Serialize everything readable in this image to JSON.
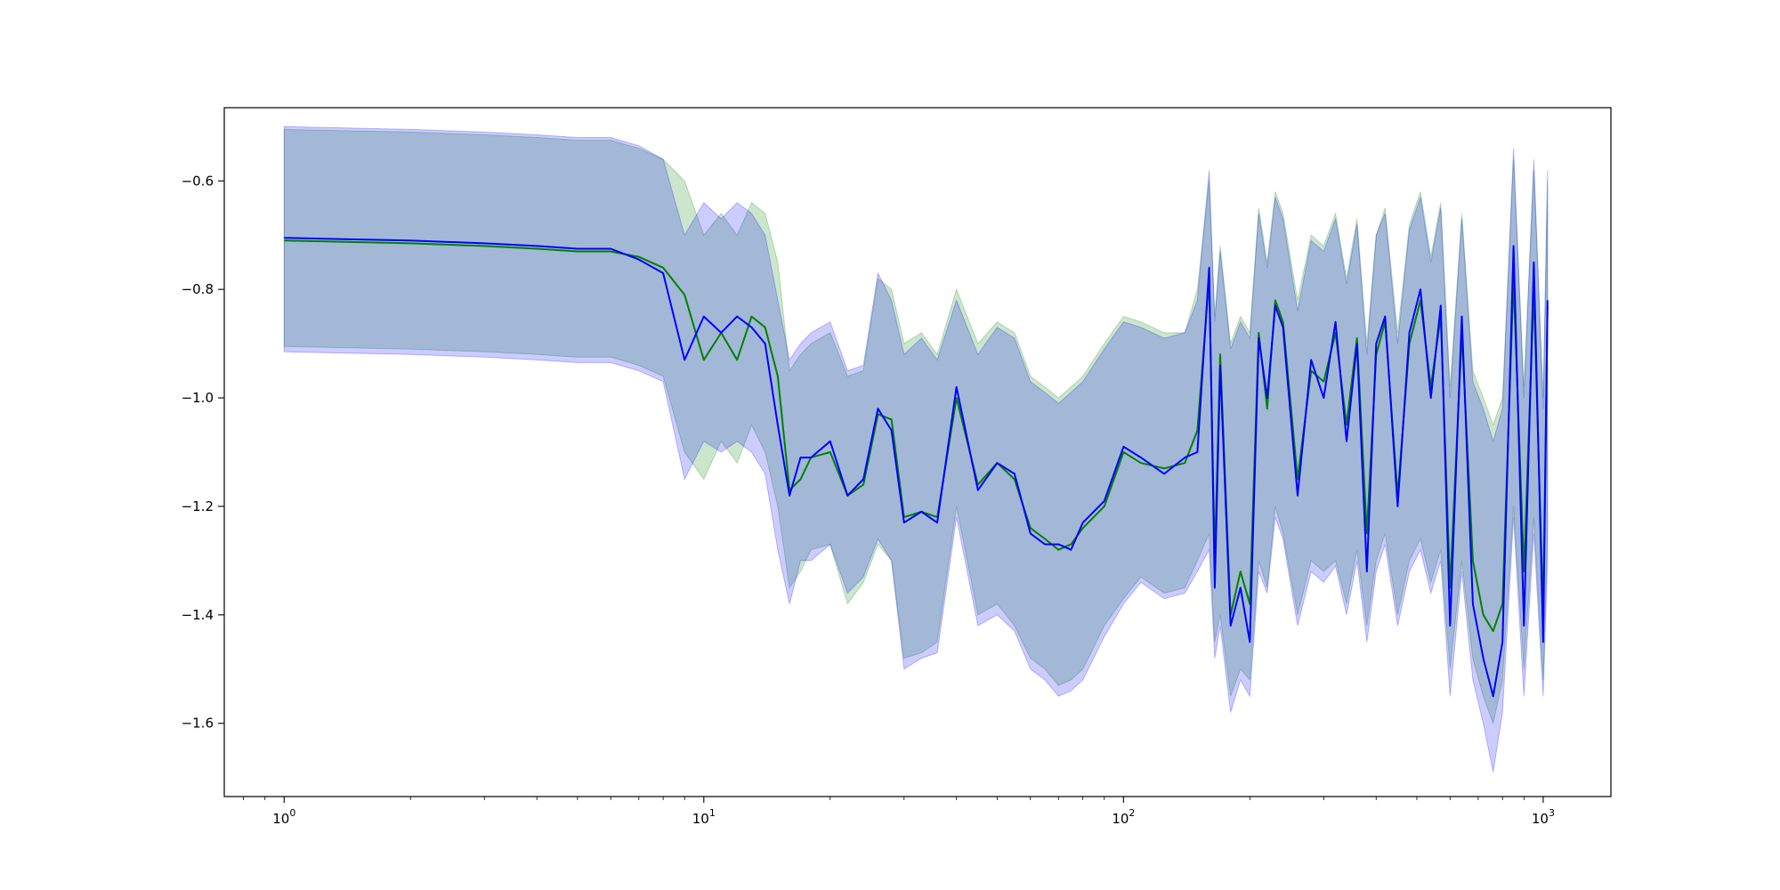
{
  "chart_data": {
    "type": "line",
    "title": "",
    "xlabel": "",
    "ylabel": "",
    "x_scale": "log",
    "xlim": [
      0.72,
      1450
    ],
    "ylim": [
      -1.735,
      -0.465
    ],
    "grid": false,
    "legend": "none",
    "x_tick_labels": [
      {
        "value": 1,
        "base": "10",
        "exp": "0"
      },
      {
        "value": 10,
        "base": "10",
        "exp": "1"
      },
      {
        "value": 100,
        "base": "10",
        "exp": "2"
      },
      {
        "value": 1000,
        "base": "10",
        "exp": "3"
      }
    ],
    "y_ticks": [
      -0.6,
      -0.8,
      -1.0,
      -1.2,
      -1.4,
      -1.6
    ],
    "y_tick_labels": [
      "−0.6",
      "−0.8",
      "−1.0",
      "−1.2",
      "−1.4",
      "−1.6"
    ],
    "series": [
      {
        "color": "#008000",
        "band_color": "#008000",
        "x": [
          1,
          2,
          3,
          4,
          5,
          6,
          7,
          8,
          9,
          10,
          11,
          12,
          13,
          14,
          15,
          16,
          17,
          18,
          20,
          22,
          24,
          26,
          28,
          30,
          33,
          36,
          40,
          45,
          50,
          55,
          60,
          65,
          70,
          75,
          80,
          90,
          100,
          110,
          125,
          140,
          150,
          160,
          165,
          170,
          180,
          190,
          200,
          210,
          220,
          230,
          240,
          260,
          280,
          300,
          320,
          340,
          360,
          380,
          400,
          420,
          450,
          480,
          510,
          540,
          570,
          600,
          640,
          680,
          720,
          760,
          800,
          850,
          900,
          950,
          1000,
          1024
        ],
        "values": [
          -0.71,
          -0.715,
          -0.72,
          -0.725,
          -0.73,
          -0.73,
          -0.74,
          -0.76,
          -0.81,
          -0.93,
          -0.88,
          -0.93,
          -0.85,
          -0.87,
          -0.96,
          -1.17,
          -1.15,
          -1.11,
          -1.1,
          -1.18,
          -1.16,
          -1.03,
          -1.04,
          -1.22,
          -1.21,
          -1.22,
          -1.0,
          -1.16,
          -1.12,
          -1.15,
          -1.24,
          -1.26,
          -1.28,
          -1.27,
          -1.24,
          -1.2,
          -1.1,
          -1.12,
          -1.13,
          -1.12,
          -1.06,
          -0.78,
          -1.3,
          -0.92,
          -1.4,
          -1.32,
          -1.38,
          -0.88,
          -1.02,
          -0.82,
          -0.86,
          -1.15,
          -0.95,
          -0.97,
          -0.88,
          -1.05,
          -0.89,
          -1.25,
          -0.92,
          -0.86,
          -1.18,
          -0.9,
          -0.82,
          -0.98,
          -0.85,
          -1.35,
          -0.88,
          -1.3,
          -1.4,
          -1.43,
          -1.38,
          -0.78,
          -1.32,
          -0.8,
          -1.4,
          -0.83
        ],
        "band_lower": [
          -0.905,
          -0.91,
          -0.915,
          -0.92,
          -0.925,
          -0.925,
          -0.94,
          -0.96,
          -1.1,
          -1.15,
          -1.08,
          -1.12,
          -1.05,
          -1.1,
          -1.2,
          -1.35,
          -1.32,
          -1.28,
          -1.27,
          -1.38,
          -1.34,
          -1.27,
          -1.3,
          -1.48,
          -1.47,
          -1.45,
          -1.2,
          -1.4,
          -1.38,
          -1.42,
          -1.48,
          -1.5,
          -1.53,
          -1.52,
          -1.5,
          -1.42,
          -1.37,
          -1.33,
          -1.36,
          -1.35,
          -1.3,
          -1.25,
          -1.45,
          -1.4,
          -1.55,
          -1.5,
          -1.52,
          -1.3,
          -1.35,
          -1.2,
          -1.25,
          -1.4,
          -1.3,
          -1.32,
          -1.3,
          -1.38,
          -1.28,
          -1.42,
          -1.3,
          -1.25,
          -1.4,
          -1.3,
          -1.26,
          -1.34,
          -1.28,
          -1.5,
          -1.3,
          -1.48,
          -1.55,
          -1.6,
          -1.52,
          -1.2,
          -1.5,
          -1.22,
          -1.52,
          -1.25
        ],
        "band_upper": [
          -0.505,
          -0.51,
          -0.515,
          -0.52,
          -0.525,
          -0.525,
          -0.54,
          -0.56,
          -0.6,
          -0.7,
          -0.66,
          -0.7,
          -0.64,
          -0.66,
          -0.75,
          -0.95,
          -0.92,
          -0.9,
          -0.88,
          -0.96,
          -0.95,
          -0.78,
          -0.8,
          -0.9,
          -0.88,
          -0.92,
          -0.8,
          -0.9,
          -0.86,
          -0.88,
          -0.96,
          -0.98,
          -1.0,
          -0.98,
          -0.96,
          -0.9,
          -0.85,
          -0.86,
          -0.88,
          -0.88,
          -0.8,
          -0.6,
          -0.85,
          -0.72,
          -0.9,
          -0.85,
          -0.88,
          -0.65,
          -0.75,
          -0.62,
          -0.66,
          -0.82,
          -0.7,
          -0.72,
          -0.66,
          -0.78,
          -0.67,
          -0.9,
          -0.7,
          -0.65,
          -0.88,
          -0.68,
          -0.62,
          -0.74,
          -0.64,
          -0.98,
          -0.66,
          -0.95,
          -1.0,
          -1.05,
          -1.0,
          -0.56,
          -0.98,
          -0.58,
          -1.0,
          -0.6
        ]
      },
      {
        "color": "#0000ff",
        "band_color": "#0000ff",
        "x": [
          1,
          2,
          3,
          4,
          5,
          6,
          7,
          8,
          9,
          10,
          11,
          12,
          13,
          14,
          15,
          16,
          17,
          18,
          20,
          22,
          24,
          26,
          28,
          30,
          33,
          36,
          40,
          45,
          50,
          55,
          60,
          65,
          70,
          75,
          80,
          90,
          100,
          110,
          125,
          140,
          150,
          160,
          165,
          170,
          180,
          190,
          200,
          210,
          220,
          230,
          240,
          260,
          280,
          300,
          320,
          340,
          360,
          380,
          400,
          420,
          450,
          480,
          510,
          540,
          570,
          600,
          640,
          680,
          720,
          760,
          800,
          850,
          900,
          950,
          1000,
          1024
        ],
        "values": [
          -0.705,
          -0.71,
          -0.715,
          -0.72,
          -0.725,
          -0.725,
          -0.745,
          -0.77,
          -0.93,
          -0.85,
          -0.88,
          -0.85,
          -0.87,
          -0.9,
          -1.05,
          -1.18,
          -1.11,
          -1.11,
          -1.08,
          -1.18,
          -1.15,
          -1.02,
          -1.06,
          -1.23,
          -1.21,
          -1.23,
          -0.98,
          -1.17,
          -1.12,
          -1.14,
          -1.25,
          -1.27,
          -1.27,
          -1.28,
          -1.23,
          -1.19,
          -1.09,
          -1.11,
          -1.14,
          -1.11,
          -1.1,
          -0.76,
          -1.35,
          -0.94,
          -1.42,
          -1.35,
          -1.45,
          -0.89,
          -1.0,
          -0.83,
          -0.87,
          -1.18,
          -0.93,
          -1.0,
          -0.86,
          -1.08,
          -0.9,
          -1.32,
          -0.9,
          -0.85,
          -1.2,
          -0.88,
          -0.8,
          -1.0,
          -0.83,
          -1.42,
          -0.85,
          -1.38,
          -1.48,
          -1.55,
          -1.45,
          -0.72,
          -1.42,
          -0.75,
          -1.45,
          -0.82
        ],
        "band_lower": [
          -0.915,
          -0.92,
          -0.925,
          -0.93,
          -0.935,
          -0.935,
          -0.95,
          -0.97,
          -1.15,
          -1.08,
          -1.1,
          -1.08,
          -1.1,
          -1.14,
          -1.28,
          -1.38,
          -1.3,
          -1.3,
          -1.27,
          -1.36,
          -1.33,
          -1.26,
          -1.3,
          -1.5,
          -1.48,
          -1.47,
          -1.22,
          -1.42,
          -1.4,
          -1.43,
          -1.5,
          -1.52,
          -1.55,
          -1.54,
          -1.52,
          -1.44,
          -1.38,
          -1.34,
          -1.37,
          -1.36,
          -1.32,
          -1.28,
          -1.48,
          -1.42,
          -1.58,
          -1.52,
          -1.55,
          -1.32,
          -1.36,
          -1.22,
          -1.26,
          -1.42,
          -1.32,
          -1.34,
          -1.31,
          -1.4,
          -1.3,
          -1.45,
          -1.32,
          -1.27,
          -1.42,
          -1.32,
          -1.28,
          -1.36,
          -1.3,
          -1.55,
          -1.32,
          -1.52,
          -1.6,
          -1.69,
          -1.58,
          -1.22,
          -1.55,
          -1.25,
          -1.55,
          -1.3
        ],
        "band_upper": [
          -0.5,
          -0.505,
          -0.51,
          -0.515,
          -0.52,
          -0.52,
          -0.535,
          -0.56,
          -0.7,
          -0.64,
          -0.67,
          -0.64,
          -0.66,
          -0.7,
          -0.82,
          -0.93,
          -0.9,
          -0.88,
          -0.86,
          -0.95,
          -0.94,
          -0.77,
          -0.82,
          -0.92,
          -0.89,
          -0.93,
          -0.82,
          -0.92,
          -0.87,
          -0.89,
          -0.97,
          -0.99,
          -1.01,
          -0.99,
          -0.97,
          -0.91,
          -0.86,
          -0.87,
          -0.89,
          -0.88,
          -0.82,
          -0.58,
          -0.86,
          -0.73,
          -0.91,
          -0.86,
          -0.89,
          -0.66,
          -0.76,
          -0.63,
          -0.67,
          -0.84,
          -0.71,
          -0.73,
          -0.67,
          -0.79,
          -0.68,
          -0.92,
          -0.7,
          -0.66,
          -0.9,
          -0.69,
          -0.63,
          -0.75,
          -0.65,
          -1.0,
          -0.67,
          -0.97,
          -1.02,
          -1.08,
          -1.02,
          -0.54,
          -1.0,
          -0.56,
          -1.02,
          -0.58
        ]
      }
    ]
  }
}
